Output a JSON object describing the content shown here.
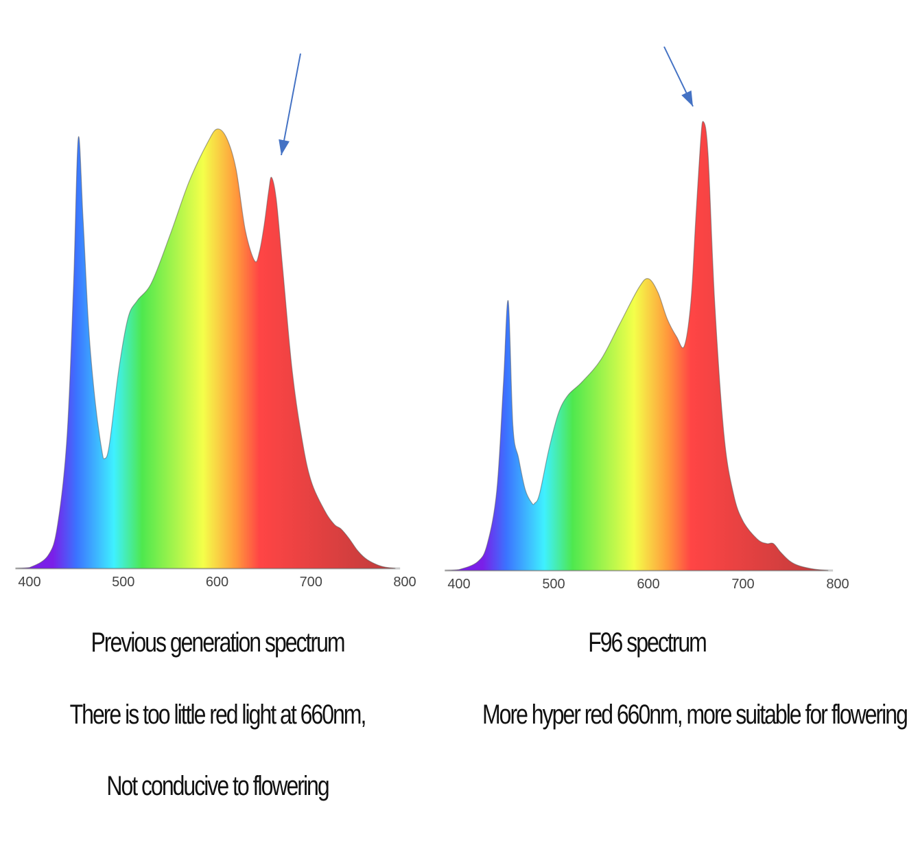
{
  "colors": {
    "arrow": "#4472c4",
    "axis": "#cccccc",
    "spectrum_stops": [
      "#7a1fe8",
      "#3b73ff",
      "#3ff0ff",
      "#4ee84e",
      "#f4ff4a",
      "#ff9a3c",
      "#ff4545",
      "#c23c3c"
    ]
  },
  "chart_data": [
    {
      "type": "area",
      "title": "Previous generation spectrum",
      "x_ticks": [
        "400",
        "500",
        "600",
        "700",
        "800"
      ],
      "xlim": [
        400,
        790
      ],
      "ylim": [
        0,
        1.0
      ],
      "annotations": [
        "arrow pointing at 660nm peak"
      ],
      "series": [
        {
          "x": [
            385,
            400,
            420,
            430,
            440,
            447,
            452,
            457,
            463,
            470,
            477,
            480,
            485,
            495,
            505,
            515,
            530,
            550,
            570,
            590,
            600,
            610,
            620,
            630,
            640,
            645,
            650,
            655,
            658,
            663,
            670,
            680,
            690,
            700,
            715,
            725,
            732,
            740,
            750,
            760,
            775,
            790
          ],
          "y": [
            0.0,
            0.002,
            0.03,
            0.1,
            0.3,
            0.65,
            0.98,
            0.8,
            0.55,
            0.38,
            0.27,
            0.25,
            0.28,
            0.45,
            0.57,
            0.61,
            0.65,
            0.76,
            0.88,
            0.97,
            1.0,
            0.98,
            0.91,
            0.77,
            0.7,
            0.72,
            0.78,
            0.86,
            0.89,
            0.84,
            0.68,
            0.45,
            0.3,
            0.2,
            0.13,
            0.1,
            0.09,
            0.07,
            0.04,
            0.02,
            0.005,
            0.0
          ]
        }
      ],
      "captions": [
        "Previous generation spectrum",
        "There is too little red light at 660nm,",
        "Not conducive to flowering"
      ]
    },
    {
      "type": "area",
      "title": "F96 spectrum",
      "x_ticks": [
        "400",
        "500",
        "600",
        "700",
        "800"
      ],
      "xlim": [
        400,
        790
      ],
      "ylim": [
        0,
        1.0
      ],
      "annotations": [
        "arrow pointing at 660nm peak"
      ],
      "series": [
        {
          "x": [
            385,
            400,
            420,
            430,
            440,
            447,
            452,
            457,
            463,
            470,
            477,
            480,
            485,
            495,
            505,
            515,
            530,
            550,
            570,
            590,
            600,
            610,
            620,
            630,
            638,
            645,
            650,
            655,
            658,
            663,
            670,
            680,
            690,
            700,
            715,
            725,
            732,
            740,
            750,
            760,
            775,
            790
          ],
          "y": [
            0.0,
            0.002,
            0.02,
            0.06,
            0.18,
            0.42,
            0.6,
            0.32,
            0.25,
            0.18,
            0.15,
            0.15,
            0.17,
            0.27,
            0.35,
            0.39,
            0.42,
            0.47,
            0.55,
            0.63,
            0.65,
            0.62,
            0.56,
            0.52,
            0.5,
            0.6,
            0.78,
            0.95,
            1.0,
            0.93,
            0.6,
            0.3,
            0.17,
            0.11,
            0.07,
            0.06,
            0.06,
            0.04,
            0.02,
            0.01,
            0.003,
            0.0
          ]
        }
      ],
      "captions": [
        "F96 spectrum",
        "More hyper red 660nm, more suitable for flowering"
      ]
    }
  ]
}
